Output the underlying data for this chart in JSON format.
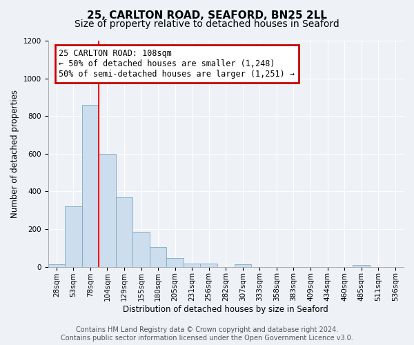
{
  "title": "25, CARLTON ROAD, SEAFORD, BN25 2LL",
  "subtitle": "Size of property relative to detached houses in Seaford",
  "xlabel": "Distribution of detached houses by size in Seaford",
  "ylabel": "Number of detached properties",
  "bin_labels": [
    "28sqm",
    "53sqm",
    "78sqm",
    "104sqm",
    "129sqm",
    "155sqm",
    "180sqm",
    "205sqm",
    "231sqm",
    "256sqm",
    "282sqm",
    "307sqm",
    "333sqm",
    "358sqm",
    "383sqm",
    "409sqm",
    "434sqm",
    "460sqm",
    "485sqm",
    "511sqm",
    "536sqm"
  ],
  "bar_values": [
    12,
    320,
    860,
    600,
    370,
    185,
    105,
    45,
    18,
    18,
    0,
    15,
    0,
    0,
    0,
    0,
    0,
    0,
    10,
    0,
    0
  ],
  "bar_color": "#ccdded",
  "bar_edge_color": "#7aaac8",
  "red_line_x": 2.5,
  "annotation_line1": "25 CARLTON ROAD: 108sqm",
  "annotation_line2": "← 50% of detached houses are smaller (1,248)",
  "annotation_line3": "50% of semi-detached houses are larger (1,251) →",
  "annotation_box_color": "#ffffff",
  "annotation_box_edge_color": "#cc0000",
  "ylim": [
    0,
    1200
  ],
  "yticks": [
    0,
    200,
    400,
    600,
    800,
    1000,
    1200
  ],
  "background_color": "#eef2f7",
  "grid_color": "#ffffff",
  "title_fontsize": 11,
  "subtitle_fontsize": 10,
  "axis_label_fontsize": 8.5,
  "tick_fontsize": 7.5,
  "annotation_fontsize": 8.5,
  "footer_fontsize": 7,
  "footer_line1": "Contains HM Land Registry data © Crown copyright and database right 2024.",
  "footer_line2": "Contains public sector information licensed under the Open Government Licence v3.0."
}
